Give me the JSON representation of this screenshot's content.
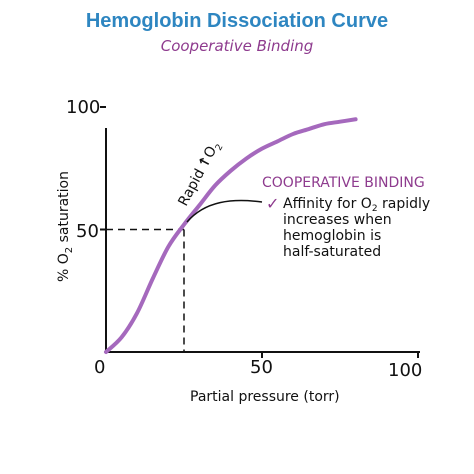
{
  "colors": {
    "title": "#2e86c1",
    "subtitle": "#8e3b8e",
    "curve": "#a569bd",
    "annotation_head": "#8e3b8e",
    "ink": "#111111"
  },
  "chart_data": {
    "type": "line",
    "title": "Hemoglobin Dissociation Curve",
    "subtitle": "Cooperative Binding",
    "xlabel": "Partial pressure (torr)",
    "ylabel_prefix": "% O",
    "ylabel_sub": "2",
    "ylabel_suffix": " saturation",
    "xlim": [
      0,
      100
    ],
    "ylim": [
      0,
      100
    ],
    "x_ticks": [
      "0",
      "50",
      "100"
    ],
    "y_ticks": [
      "100",
      "50"
    ],
    "grid": false,
    "series": [
      {
        "x": [
          0,
          5,
          10,
          15,
          20,
          25,
          30,
          35,
          40,
          45,
          50,
          55,
          60,
          65,
          70,
          75,
          80
        ],
        "values": [
          0,
          6,
          16,
          30,
          43,
          52,
          60,
          68,
          74,
          79,
          83,
          86,
          89,
          91,
          93,
          94,
          95
        ]
      }
    ],
    "reference_point": {
      "x": 25,
      "y": 50
    },
    "annotations": {
      "rapid_prefix": "Rapid",
      "rapid_arrow": "↑",
      "rapid_o": "O",
      "rapid_sub": "2",
      "heading": "COOPERATIVE BINDING",
      "check": "✓",
      "line1_prefix": "Affinity for O",
      "line1_sub": "2",
      "line1_suffix": " rapidly",
      "line2": "increases when",
      "line3": "hemoglobin is",
      "line4": "half-saturated"
    }
  }
}
